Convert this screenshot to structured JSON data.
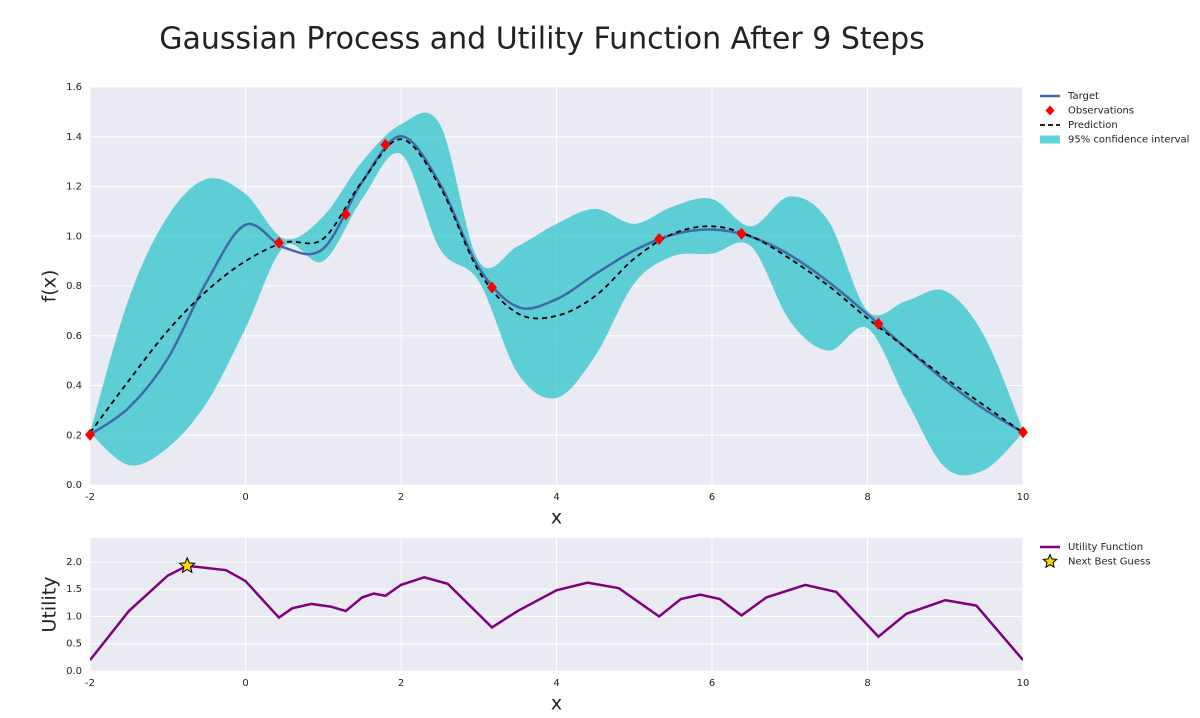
{
  "chart_data": [
    {
      "type": "line",
      "title": "Gaussian Process and Utility Function After 9 Steps",
      "xlabel": "x",
      "ylabel": "f(x)",
      "xlim": [
        -2,
        10
      ],
      "ylim": [
        0,
        1.6
      ],
      "xticks": [
        -2,
        0,
        2,
        4,
        6,
        8,
        10
      ],
      "yticks": [
        {
          "value": 0,
          "label": "0.0"
        },
        {
          "value": 0.2,
          "label": "0.2"
        },
        {
          "value": 0.4,
          "label": "0.4"
        },
        {
          "value": 0.6,
          "label": "0.6"
        },
        {
          "value": 0.8,
          "label": "0.8"
        },
        {
          "value": 1,
          "label": "1.0"
        },
        {
          "value": 1.2,
          "label": "1.2"
        },
        {
          "value": 1.4,
          "label": "1.4"
        },
        {
          "value": 1.6,
          "label": "1.6"
        }
      ],
      "grid": true,
      "x": [
        -2,
        -1.5,
        -1,
        -0.5,
        0,
        0.5,
        1,
        1.5,
        2,
        2.5,
        3,
        3.5,
        4,
        4.5,
        5,
        5.5,
        6,
        6.5,
        7,
        7.5,
        8,
        8.5,
        9,
        9.5,
        10
      ],
      "series": [
        {
          "name": "Target",
          "kind": "line",
          "color": "#4169a8",
          "values": [
            0.202,
            0.311,
            0.508,
            0.817,
            1.046,
            0.954,
            0.95,
            1.218,
            1.402,
            1.211,
            0.874,
            0.716,
            0.747,
            0.848,
            0.943,
            1.007,
            1.027,
            0.998,
            0.925,
            0.816,
            0.686,
            0.549,
            0.419,
            0.305,
            0.212
          ]
        },
        {
          "name": "Observations",
          "kind": "marker",
          "marker": "diamond",
          "color": "#ff0000",
          "x": [
            -2,
            0.43,
            1.29,
            1.8,
            3.17,
            5.32,
            6.38,
            8.14,
            10
          ],
          "values": [
            0.202,
            0.974,
            1.088,
            1.368,
            0.794,
            0.989,
            1.01,
            0.648,
            0.212
          ]
        },
        {
          "name": "Prediction",
          "kind": "line",
          "dash": true,
          "color": "#000000",
          "values": [
            0.21,
            0.42,
            0.62,
            0.78,
            0.9,
            0.975,
            0.99,
            1.22,
            1.39,
            1.2,
            0.86,
            0.69,
            0.68,
            0.76,
            0.91,
            1.01,
            1.04,
            1.0,
            0.91,
            0.8,
            0.67,
            0.55,
            0.43,
            0.32,
            0.21
          ]
        },
        {
          "name": "95% confidence interval",
          "kind": "band",
          "color": "#2ec4cb",
          "upper": [
            0.21,
            0.75,
            1.08,
            1.23,
            1.17,
            0.99,
            1.08,
            1.3,
            1.45,
            1.45,
            0.9,
            0.96,
            1.05,
            1.11,
            1.05,
            1.12,
            1.15,
            1.04,
            1.16,
            1.06,
            0.7,
            0.74,
            0.78,
            0.6,
            0.22
          ],
          "lower": [
            0.21,
            0.08,
            0.15,
            0.33,
            0.63,
            0.96,
            0.9,
            1.15,
            1.33,
            0.95,
            0.82,
            0.45,
            0.35,
            0.52,
            0.81,
            0.92,
            0.93,
            0.96,
            0.66,
            0.54,
            0.63,
            0.34,
            0.07,
            0.06,
            0.21
          ]
        }
      ]
    },
    {
      "type": "line",
      "xlabel": "x",
      "ylabel": "Utility",
      "xlim": [
        -2,
        10
      ],
      "ylim": [
        0,
        2.44
      ],
      "xticks": [
        -2,
        0,
        2,
        4,
        6,
        8,
        10
      ],
      "yticks": [
        {
          "value": 0,
          "label": "0.0"
        },
        {
          "value": 0.5,
          "label": "0.5"
        },
        {
          "value": 1,
          "label": "1.0"
        },
        {
          "value": 1.5,
          "label": "1.5"
        },
        {
          "value": 2,
          "label": "2.0"
        }
      ],
      "grid": true,
      "series": [
        {
          "name": "Utility Function",
          "kind": "line",
          "color": "#800080",
          "x": [
            -2,
            -1.5,
            -1,
            -0.75,
            -0.25,
            0,
            0.43,
            0.6,
            0.85,
            1.1,
            1.29,
            1.5,
            1.65,
            1.8,
            2,
            2.3,
            2.6,
            3.17,
            3.5,
            4,
            4.4,
            4.8,
            5.32,
            5.6,
            5.85,
            6.1,
            6.38,
            6.7,
            7.2,
            7.6,
            8.14,
            8.5,
            9,
            9.4,
            10
          ],
          "values": [
            0.2,
            1.1,
            1.75,
            1.93,
            1.85,
            1.65,
            0.98,
            1.15,
            1.23,
            1.18,
            1.1,
            1.35,
            1.42,
            1.38,
            1.58,
            1.72,
            1.6,
            0.8,
            1.1,
            1.48,
            1.62,
            1.52,
            1.0,
            1.32,
            1.4,
            1.32,
            1.02,
            1.35,
            1.58,
            1.45,
            0.63,
            1.05,
            1.3,
            1.2,
            0.2
          ]
        },
        {
          "name": "Next Best Guess",
          "kind": "marker",
          "marker": "star",
          "color": "#ffd700",
          "x": [
            -0.75
          ],
          "values": [
            1.93
          ]
        }
      ]
    }
  ]
}
